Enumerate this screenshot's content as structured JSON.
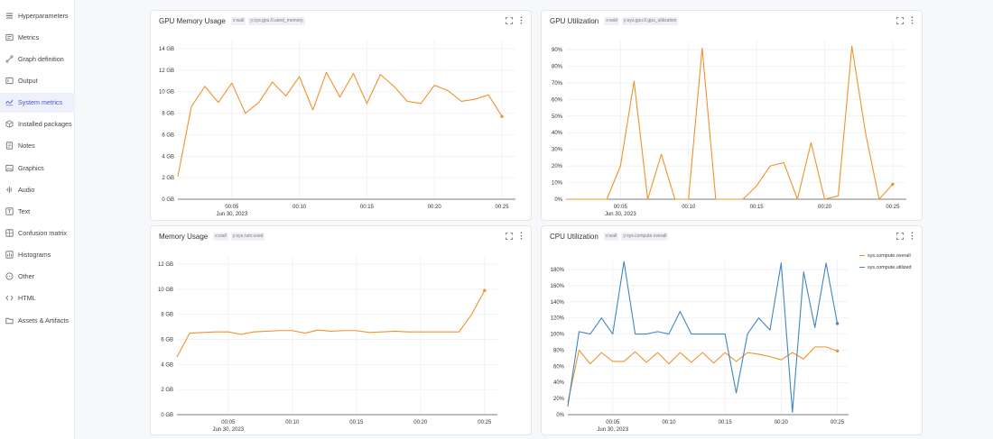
{
  "sidebar": {
    "items": [
      {
        "label": "Hyperparameters",
        "icon": "list-icon",
        "active": false
      },
      {
        "label": "Metrics",
        "icon": "metrics-icon",
        "active": false
      },
      {
        "label": "Graph definition",
        "icon": "graph-icon",
        "active": false
      },
      {
        "label": "Output",
        "icon": "output-icon",
        "active": false
      },
      {
        "label": "System metrics",
        "icon": "system-icon",
        "active": true
      },
      {
        "label": "Installed packages",
        "icon": "package-icon",
        "active": false
      },
      {
        "label": "Notes",
        "icon": "notes-icon",
        "active": false
      },
      {
        "label": "Graphics",
        "icon": "image-icon",
        "active": false
      },
      {
        "label": "Audio",
        "icon": "audio-icon",
        "active": false
      },
      {
        "label": "Text",
        "icon": "text-icon",
        "active": false
      },
      {
        "label": "Confusion matrix",
        "icon": "matrix-icon",
        "active": false
      },
      {
        "label": "Histograms",
        "icon": "histogram-icon",
        "active": false
      },
      {
        "label": "Other",
        "icon": "other-icon",
        "active": false
      },
      {
        "label": "HTML",
        "icon": "html-icon",
        "active": false
      },
      {
        "label": "Assets & Artifacts",
        "icon": "folder-icon",
        "active": false
      }
    ]
  },
  "colors": {
    "orange": "#f0922b",
    "blue": "#3f86c2",
    "active_bg": "#eef0fb",
    "active_text": "#4a57c8"
  },
  "panels": [
    {
      "title": "GPU Memory Usage",
      "tags": [
        "x:wall",
        "y:sys.gpu.0.used_memory"
      ]
    },
    {
      "title": "GPU Utilization",
      "tags": [
        "x:wall",
        "y:sys.gpu.0.gpu_utilization"
      ]
    },
    {
      "title": "Memory Usage",
      "tags": [
        "x:wall",
        "y:sys.ram.used"
      ]
    },
    {
      "title": "CPU Utilization",
      "tags": [
        "x:wall",
        "y:sys.compute.overall"
      ]
    }
  ],
  "chart_data": [
    {
      "type": "line",
      "title": "GPU Memory Usage",
      "x_ticks": [
        "00:05",
        "00:10",
        "00:15",
        "00:20",
        "00:25"
      ],
      "x_tick_minutes": [
        5,
        10,
        15,
        20,
        25
      ],
      "x_sublabel": "Jun 30, 2023",
      "xlim": [
        1,
        26
      ],
      "ylim": [
        0,
        14
      ],
      "y_ticks": [
        0,
        2,
        4,
        6,
        8,
        10,
        12,
        14
      ],
      "y_tick_labels": [
        "0 GB",
        "2 GB",
        "4 GB",
        "6 GB",
        "8 GB",
        "10 GB",
        "12 GB",
        "14 GB"
      ],
      "grid": true,
      "series": [
        {
          "color": "#f0922b",
          "x": [
            1,
            2,
            3,
            4,
            5,
            6,
            7,
            8,
            9,
            10,
            11,
            12,
            13,
            14,
            15,
            16,
            17,
            18,
            19,
            20,
            21,
            22,
            23,
            24,
            25
          ],
          "y": [
            2.1,
            8.6,
            10.5,
            9.0,
            10.8,
            8.0,
            9.0,
            10.9,
            9.6,
            11.4,
            8.3,
            11.8,
            9.5,
            11.7,
            8.9,
            11.6,
            10.5,
            9.1,
            8.9,
            10.6,
            10.1,
            9.1,
            9.3,
            9.7,
            7.7
          ]
        }
      ]
    },
    {
      "type": "line",
      "title": "GPU Utilization",
      "x_ticks": [
        "00:05",
        "00:10",
        "00:15",
        "00:20",
        "00:25"
      ],
      "x_tick_minutes": [
        5,
        10,
        15,
        20,
        25
      ],
      "x_sublabel": "Jun 30, 2023",
      "xlim": [
        1,
        26
      ],
      "ylim": [
        0,
        90
      ],
      "y_ticks": [
        0,
        10,
        20,
        30,
        40,
        50,
        60,
        70,
        80,
        90
      ],
      "y_tick_labels": [
        "0%",
        "10%",
        "20%",
        "30%",
        "40%",
        "50%",
        "60%",
        "70%",
        "80%",
        "90%"
      ],
      "grid": true,
      "series": [
        {
          "color": "#f0922b",
          "x": [
            1,
            2,
            3,
            4,
            5,
            6,
            7,
            8,
            9,
            10,
            11,
            12,
            13,
            14,
            15,
            16,
            17,
            18,
            19,
            20,
            21,
            22,
            23,
            24,
            25
          ],
          "y": [
            0,
            0,
            0,
            0,
            20,
            71,
            0,
            27,
            0,
            0,
            91,
            0,
            0,
            0,
            8,
            20,
            22,
            0,
            34,
            0,
            2,
            92,
            40,
            0,
            9
          ]
        }
      ]
    },
    {
      "type": "line",
      "title": "Memory Usage",
      "x_ticks": [
        "00:05",
        "00:10",
        "00:15",
        "00:20",
        "00:25"
      ],
      "x_tick_minutes": [
        5,
        10,
        15,
        20,
        25
      ],
      "x_sublabel": "Jun 30, 2023",
      "xlim": [
        1,
        26
      ],
      "ylim": [
        0,
        12
      ],
      "y_ticks": [
        0,
        2,
        4,
        6,
        8,
        10,
        12
      ],
      "y_tick_labels": [
        "0 GB",
        "2 GB",
        "4 GB",
        "6 GB",
        "8 GB",
        "10 GB",
        "12 GB"
      ],
      "grid": true,
      "series": [
        {
          "color": "#f0922b",
          "x": [
            1,
            2,
            3,
            4,
            5,
            6,
            7,
            8,
            9,
            10,
            11,
            12,
            13,
            14,
            15,
            16,
            17,
            18,
            19,
            20,
            21,
            22,
            23,
            24,
            25
          ],
          "y": [
            4.6,
            6.5,
            6.55,
            6.6,
            6.6,
            6.4,
            6.6,
            6.65,
            6.7,
            6.7,
            6.5,
            6.75,
            6.65,
            6.7,
            6.7,
            6.55,
            6.6,
            6.65,
            6.6,
            6.6,
            6.6,
            6.6,
            6.6,
            8.0,
            9.9
          ]
        }
      ]
    },
    {
      "type": "line",
      "title": "CPU Utilization",
      "x_ticks": [
        "00:05",
        "00:10",
        "00:15",
        "00:20",
        "00:25"
      ],
      "x_tick_minutes": [
        5,
        10,
        15,
        20,
        25
      ],
      "x_sublabel": "Jun 30, 2023",
      "xlim": [
        1,
        26
      ],
      "ylim": [
        0,
        180
      ],
      "y_ticks": [
        0,
        20,
        40,
        60,
        80,
        100,
        120,
        140,
        160,
        180
      ],
      "y_tick_labels": [
        "0%",
        "20%",
        "40%",
        "60%",
        "80%",
        "100%",
        "120%",
        "140%",
        "160%",
        "180%"
      ],
      "grid": true,
      "legend_position": "top-right",
      "series": [
        {
          "name": "sys.compute.overall",
          "color": "#f0922b",
          "x": [
            1,
            2,
            3,
            4,
            5,
            6,
            7,
            8,
            9,
            10,
            11,
            12,
            13,
            14,
            15,
            16,
            17,
            18,
            19,
            20,
            21,
            22,
            23,
            24,
            25
          ],
          "y": [
            15,
            80,
            63,
            77,
            66,
            66,
            78,
            65,
            77,
            63,
            77,
            65,
            77,
            64,
            77,
            66,
            77,
            75,
            72,
            68,
            77,
            69,
            84,
            84,
            79
          ]
        },
        {
          "name": "sys.compute.utilized",
          "color": "#3f86c2",
          "x": [
            1,
            2,
            3,
            4,
            5,
            6,
            7,
            8,
            9,
            10,
            11,
            12,
            13,
            14,
            15,
            16,
            17,
            18,
            19,
            20,
            21,
            22,
            23,
            24,
            25
          ],
          "y": [
            10,
            103,
            100,
            120,
            100,
            190,
            100,
            100,
            103,
            100,
            128,
            100,
            100,
            100,
            100,
            27,
            100,
            120,
            105,
            188,
            3,
            177,
            108,
            188,
            113
          ]
        }
      ]
    }
  ]
}
